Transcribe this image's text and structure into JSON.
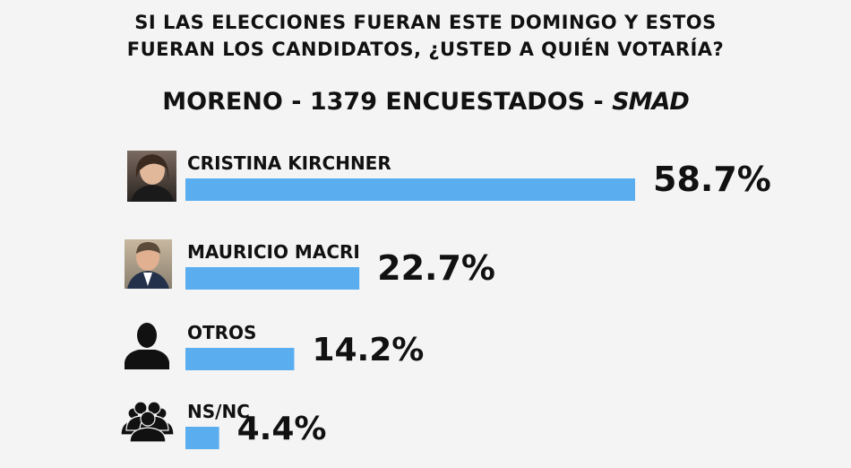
{
  "title_lines": [
    "SI LAS ELECCIONES FUERAN ESTE DOMINGO Y ESTOS",
    "FUERAN LOS CANDIDATOS, ¿USTED A QUIÉN VOTARÍA?"
  ],
  "subtitle": {
    "prefix": "MORENO - 1379 ENCUESTADOS - ",
    "brand": "SMAD"
  },
  "colors": {
    "bar": "#5aaef0",
    "text": "#111111",
    "background": "#f4f4f4"
  },
  "chart_data": {
    "type": "bar",
    "orientation": "horizontal",
    "categories": [
      "CRISTINA KIRCHNER",
      "MAURICIO MACRI",
      "OTROS",
      "NS/NC"
    ],
    "values": [
      58.7,
      22.7,
      14.2,
      4.4
    ],
    "value_labels": [
      "58.7%",
      "22.7%",
      "14.2%",
      "4.4%"
    ],
    "icons": [
      "photo-kirchner",
      "photo-macri",
      "person-icon",
      "group-icon"
    ],
    "xlim": [
      0,
      58.7
    ],
    "grid": false,
    "legend": "none"
  }
}
